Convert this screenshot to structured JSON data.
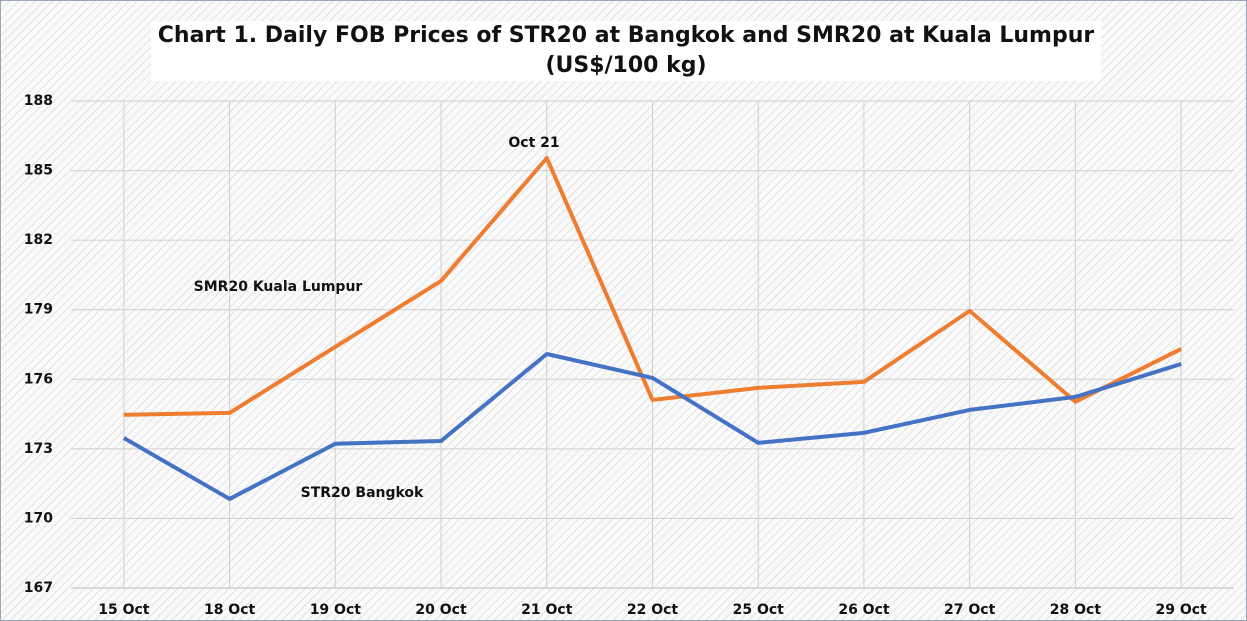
{
  "chart_data": {
    "type": "line",
    "title": "Chart 1. Daily FOB Prices of STR20 at Bangkok and SMR20 at Kuala Lumpur (US$/100 kg)",
    "categories": [
      "15 Oct",
      "18 Oct",
      "19 Oct",
      "20 Oct",
      "21 Oct",
      "22 Oct",
      "25 Oct",
      "26 Oct",
      "27 Oct",
      "28 Oct",
      "29 Oct"
    ],
    "series": [
      {
        "name": "SMR20 Kuala Lumpur",
        "color": "#ed7d31",
        "values": [
          174.47,
          174.55,
          177.4,
          180.24,
          185.54,
          175.11,
          175.63,
          175.89,
          178.95,
          175.03,
          177.31
        ]
      },
      {
        "name": "STR20 Bangkok",
        "color": "#4472c4",
        "values": [
          173.47,
          170.84,
          173.22,
          173.34,
          177.09,
          176.06,
          173.26,
          173.69,
          174.68,
          175.24,
          176.66
        ]
      }
    ],
    "annotations": [
      "Oct 21"
    ],
    "ylim": [
      167,
      188
    ],
    "yticks": [
      167,
      170,
      173,
      176,
      179,
      182,
      185,
      188
    ],
    "grid": true
  }
}
